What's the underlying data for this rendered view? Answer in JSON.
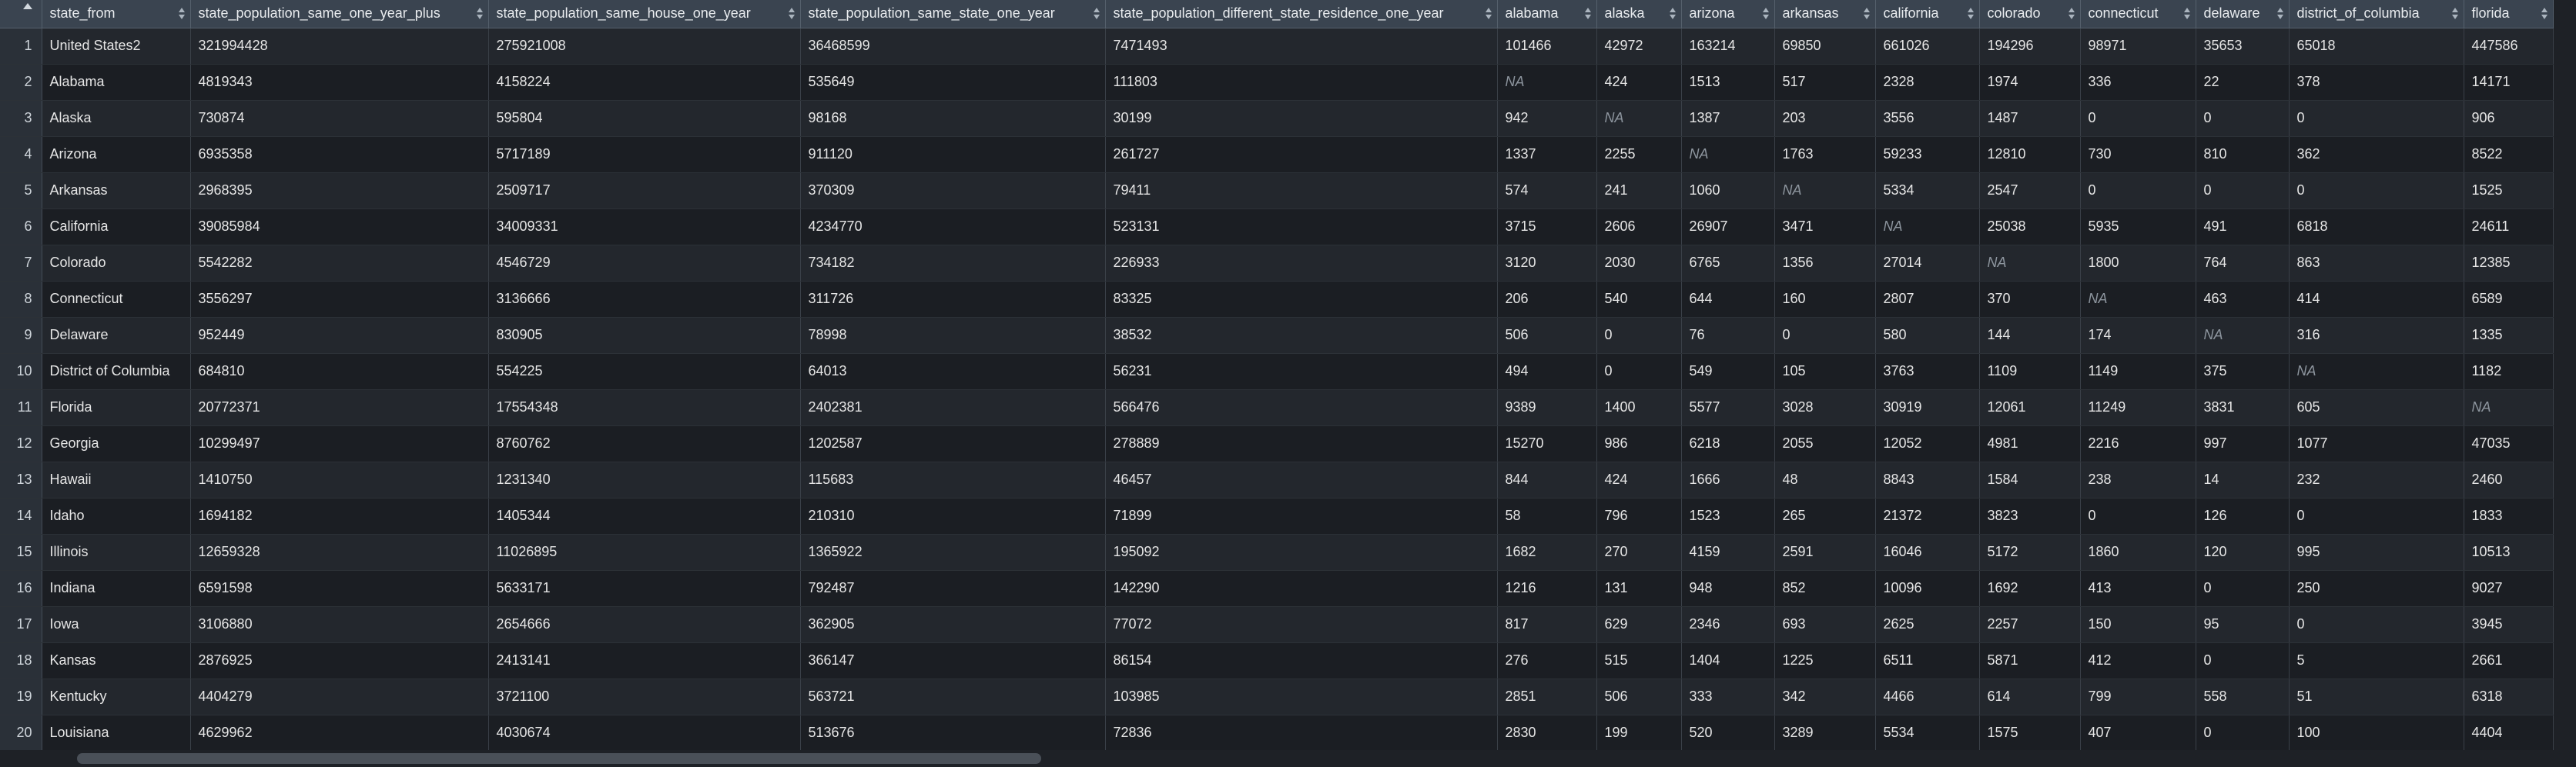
{
  "columns": [
    "state_from",
    "state_population_same_one_year_plus",
    "state_population_same_house_one_year",
    "state_population_same_state_one_year",
    "state_population_different_state_residence_one_year",
    "alabama",
    "alaska",
    "arizona",
    "arkansas",
    "california",
    "colorado",
    "connecticut",
    "delaware",
    "district_of_columbia",
    "florida"
  ],
  "rows": [
    {
      "n": "1",
      "cells": [
        "United States2",
        "321994428",
        "275921008",
        "36468599",
        "7471493",
        "101466",
        "42972",
        "163214",
        "69850",
        "661026",
        "194296",
        "98971",
        "35653",
        "65018",
        "447586"
      ]
    },
    {
      "n": "2",
      "cells": [
        "Alabama",
        "4819343",
        "4158224",
        "535649",
        "111803",
        "NA",
        "424",
        "1513",
        "517",
        "2328",
        "1974",
        "336",
        "22",
        "378",
        "14171"
      ]
    },
    {
      "n": "3",
      "cells": [
        "Alaska",
        "730874",
        "595804",
        "98168",
        "30199",
        "942",
        "NA",
        "1387",
        "203",
        "3556",
        "1487",
        "0",
        "0",
        "0",
        "906"
      ]
    },
    {
      "n": "4",
      "cells": [
        "Arizona",
        "6935358",
        "5717189",
        "911120",
        "261727",
        "1337",
        "2255",
        "NA",
        "1763",
        "59233",
        "12810",
        "730",
        "810",
        "362",
        "8522"
      ]
    },
    {
      "n": "5",
      "cells": [
        "Arkansas",
        "2968395",
        "2509717",
        "370309",
        "79411",
        "574",
        "241",
        "1060",
        "NA",
        "5334",
        "2547",
        "0",
        "0",
        "0",
        "1525"
      ]
    },
    {
      "n": "6",
      "cells": [
        "California",
        "39085984",
        "34009331",
        "4234770",
        "523131",
        "3715",
        "2606",
        "26907",
        "3471",
        "NA",
        "25038",
        "5935",
        "491",
        "6818",
        "24611"
      ]
    },
    {
      "n": "7",
      "cells": [
        "Colorado",
        "5542282",
        "4546729",
        "734182",
        "226933",
        "3120",
        "2030",
        "6765",
        "1356",
        "27014",
        "NA",
        "1800",
        "764",
        "863",
        "12385"
      ]
    },
    {
      "n": "8",
      "cells": [
        "Connecticut",
        "3556297",
        "3136666",
        "311726",
        "83325",
        "206",
        "540",
        "644",
        "160",
        "2807",
        "370",
        "NA",
        "463",
        "414",
        "6589"
      ]
    },
    {
      "n": "9",
      "cells": [
        "Delaware",
        "952449",
        "830905",
        "78998",
        "38532",
        "506",
        "0",
        "76",
        "0",
        "580",
        "144",
        "174",
        "NA",
        "316",
        "1335"
      ]
    },
    {
      "n": "10",
      "cells": [
        "District of Columbia",
        "684810",
        "554225",
        "64013",
        "56231",
        "494",
        "0",
        "549",
        "105",
        "3763",
        "1109",
        "1149",
        "375",
        "NA",
        "1182"
      ]
    },
    {
      "n": "11",
      "cells": [
        "Florida",
        "20772371",
        "17554348",
        "2402381",
        "566476",
        "9389",
        "1400",
        "5577",
        "3028",
        "30919",
        "12061",
        "11249",
        "3831",
        "605",
        "NA"
      ]
    },
    {
      "n": "12",
      "cells": [
        "Georgia",
        "10299497",
        "8760762",
        "1202587",
        "278889",
        "15270",
        "986",
        "6218",
        "2055",
        "12052",
        "4981",
        "2216",
        "997",
        "1077",
        "47035"
      ]
    },
    {
      "n": "13",
      "cells": [
        "Hawaii",
        "1410750",
        "1231340",
        "115683",
        "46457",
        "844",
        "424",
        "1666",
        "48",
        "8843",
        "1584",
        "238",
        "14",
        "232",
        "2460"
      ]
    },
    {
      "n": "14",
      "cells": [
        "Idaho",
        "1694182",
        "1405344",
        "210310",
        "71899",
        "58",
        "796",
        "1523",
        "265",
        "21372",
        "3823",
        "0",
        "126",
        "0",
        "1833"
      ]
    },
    {
      "n": "15",
      "cells": [
        "Illinois",
        "12659328",
        "11026895",
        "1365922",
        "195092",
        "1682",
        "270",
        "4159",
        "2591",
        "16046",
        "5172",
        "1860",
        "120",
        "995",
        "10513"
      ]
    },
    {
      "n": "16",
      "cells": [
        "Indiana",
        "6591598",
        "5633171",
        "792487",
        "142290",
        "1216",
        "131",
        "948",
        "852",
        "10096",
        "1692",
        "413",
        "0",
        "250",
        "9027"
      ]
    },
    {
      "n": "17",
      "cells": [
        "Iowa",
        "3106880",
        "2654666",
        "362905",
        "77072",
        "817",
        "629",
        "2346",
        "693",
        "2625",
        "2257",
        "150",
        "95",
        "0",
        "3945"
      ]
    },
    {
      "n": "18",
      "cells": [
        "Kansas",
        "2876925",
        "2413141",
        "366147",
        "86154",
        "276",
        "515",
        "1404",
        "1225",
        "6511",
        "5871",
        "412",
        "0",
        "5",
        "2661"
      ]
    },
    {
      "n": "19",
      "cells": [
        "Kentucky",
        "4404279",
        "3721100",
        "563721",
        "103985",
        "2851",
        "506",
        "333",
        "342",
        "4466",
        "614",
        "799",
        "558",
        "51",
        "6318"
      ]
    },
    {
      "n": "20",
      "cells": [
        "Louisiana",
        "4629962",
        "4030674",
        "513676",
        "72836",
        "2830",
        "199",
        "520",
        "3289",
        "5534",
        "1575",
        "407",
        "0",
        "100",
        "4404"
      ]
    }
  ]
}
